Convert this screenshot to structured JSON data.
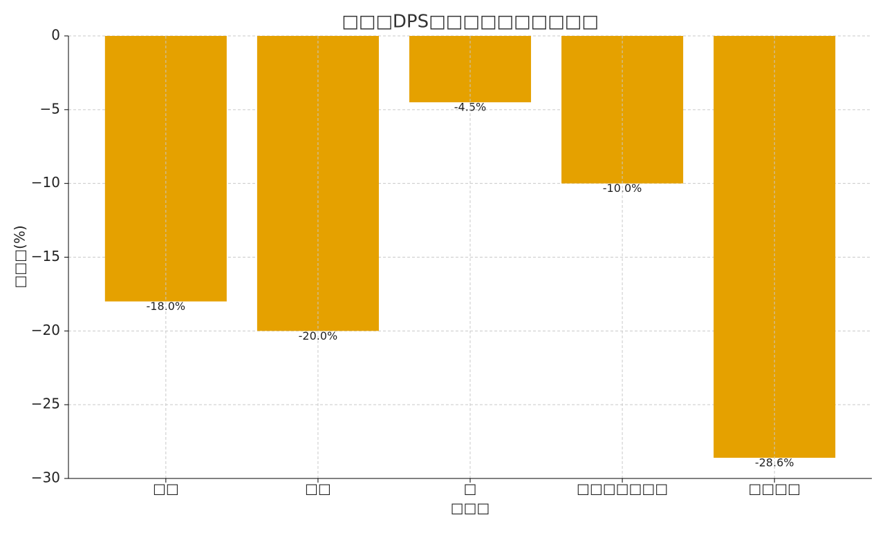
{
  "chart_data": {
    "type": "bar",
    "title": "□□□DPS□□□□□□□□□□",
    "x_label": "□□□",
    "y_label": "□□□(%)",
    "categories": [
      "□□",
      "□□",
      "□",
      "□□□□□□□",
      "□□□□"
    ],
    "values": [
      -18.0,
      -20.0,
      -4.5,
      -10.0,
      -28.6
    ],
    "value_labels": [
      "-18.0%",
      "-20.0%",
      "-4.5%",
      "-10.0%",
      "-28.6%"
    ],
    "color": "#e5a100",
    "ylim": [
      -30,
      0
    ],
    "yticks": [
      {
        "value": -30,
        "label": "−30"
      },
      {
        "value": -25,
        "label": "−25"
      },
      {
        "value": -20,
        "label": "−20"
      },
      {
        "value": -15,
        "label": "−15"
      },
      {
        "value": -10,
        "label": "−10"
      },
      {
        "value": -5,
        "label": "−5"
      },
      0
    ],
    "grid": true
  }
}
